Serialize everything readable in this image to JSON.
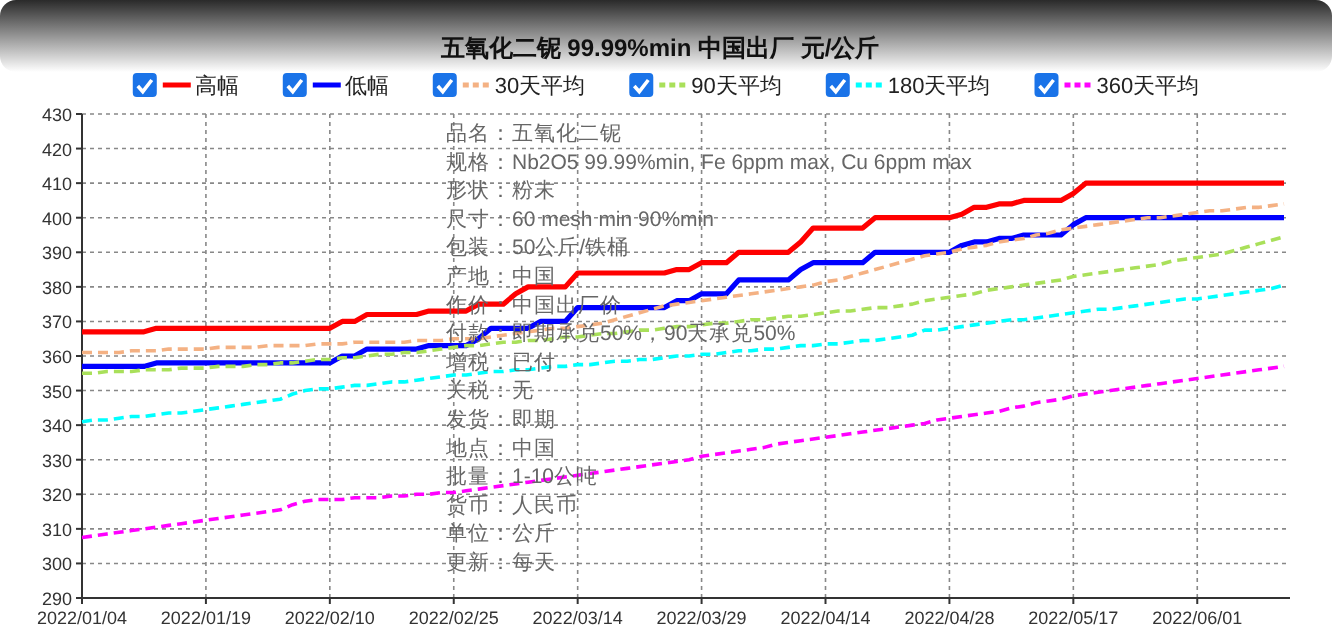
{
  "chart_data": {
    "type": "line",
    "title": "五氧化二铌 99.99%min 中国出厂 元/公斤",
    "categories": [
      "2022/01/04",
      null,
      null,
      null,
      null,
      null,
      null,
      null,
      null,
      null,
      "2022/01/19",
      null,
      null,
      null,
      null,
      null,
      null,
      null,
      null,
      null,
      "2022/02/10",
      null,
      null,
      null,
      null,
      null,
      null,
      null,
      null,
      null,
      "2022/02/25",
      null,
      null,
      null,
      null,
      null,
      null,
      null,
      null,
      null,
      "2022/03/14",
      null,
      null,
      null,
      null,
      null,
      null,
      null,
      null,
      null,
      "2022/03/29",
      null,
      null,
      null,
      null,
      null,
      null,
      null,
      null,
      null,
      "2022/04/14",
      null,
      null,
      null,
      null,
      null,
      null,
      null,
      null,
      null,
      "2022/04/28",
      null,
      null,
      null,
      null,
      null,
      null,
      null,
      null,
      null,
      "2022/05/17",
      null,
      null,
      null,
      null,
      null,
      null,
      null,
      null,
      null,
      "2022/06/01",
      null,
      null,
      null,
      null,
      null,
      null,
      null
    ],
    "series": [
      {
        "name": "高幅",
        "color": "#ff0000",
        "line_style": "solid",
        "values": [
          367,
          367,
          367,
          367,
          367,
          367,
          368,
          368,
          368,
          368,
          368,
          368,
          368,
          368,
          368,
          368,
          368,
          368,
          368,
          368,
          368,
          370,
          370,
          372,
          372,
          372,
          372,
          372,
          373,
          373,
          373,
          373,
          375,
          375,
          375,
          378,
          380,
          380,
          380,
          380,
          384,
          384,
          384,
          384,
          384,
          384,
          384,
          384,
          385,
          385,
          387,
          387,
          387,
          390,
          390,
          390,
          390,
          390,
          393,
          397,
          397,
          397,
          397,
          397,
          400,
          400,
          400,
          400,
          400,
          400,
          400,
          401,
          403,
          403,
          404,
          404,
          405,
          405,
          405,
          405,
          407,
          410,
          410,
          410,
          410,
          410,
          410,
          410,
          410,
          410,
          410,
          410,
          410,
          410,
          410,
          410,
          410,
          410
        ]
      },
      {
        "name": "低幅",
        "color": "#0000ff",
        "line_style": "solid",
        "values": [
          357,
          357,
          357,
          357,
          357,
          357,
          358,
          358,
          358,
          358,
          358,
          358,
          358,
          358,
          358,
          358,
          358,
          358,
          358,
          358,
          358,
          360,
          360,
          362,
          362,
          362,
          362,
          362,
          363,
          363,
          363,
          363,
          365,
          368,
          368,
          368,
          368,
          370,
          370,
          370,
          374,
          374,
          374,
          374,
          374,
          374,
          374,
          374,
          376,
          376,
          378,
          378,
          378,
          382,
          382,
          382,
          382,
          382,
          385,
          387,
          387,
          387,
          387,
          387,
          390,
          390,
          390,
          390,
          390,
          390,
          390,
          392,
          393,
          393,
          394,
          394,
          395,
          395,
          395,
          395,
          398,
          400,
          400,
          400,
          400,
          400,
          400,
          400,
          400,
          400,
          400,
          400,
          400,
          400,
          400,
          400,
          400,
          400
        ]
      },
      {
        "name": "30天平均",
        "color": "#f4b183",
        "line_style": "dashed",
        "values": [
          361,
          361,
          361,
          361,
          361.5,
          361.5,
          361.5,
          362,
          362,
          362,
          362,
          362.5,
          362.5,
          362.5,
          362.5,
          363,
          363,
          363,
          363,
          363.5,
          363.5,
          363.5,
          364,
          364,
          364,
          364,
          364,
          364.5,
          364.5,
          364.5,
          365,
          365,
          365,
          365.5,
          366,
          366.5,
          367,
          367.5,
          368,
          368,
          368.5,
          369,
          369.5,
          370.5,
          371.5,
          372.5,
          373.5,
          374.5,
          375,
          375.5,
          376,
          376.5,
          377,
          377.5,
          378,
          378.5,
          379,
          379.5,
          380,
          380.5,
          381.5,
          382,
          383,
          384,
          385,
          386,
          387,
          388,
          389,
          389.5,
          390,
          391,
          391.5,
          392,
          393,
          393.5,
          394,
          395,
          395.5,
          396.5,
          397,
          397.5,
          398,
          398.5,
          399,
          399.5,
          400,
          400,
          400.5,
          401,
          401.5,
          402,
          402,
          402.5,
          403,
          403,
          403.5,
          404
        ]
      },
      {
        "name": "90天平均",
        "color": "#a9e05a",
        "line_style": "dashed",
        "values": [
          355,
          355,
          355.5,
          355.5,
          355.5,
          356,
          356,
          356,
          356.5,
          356.5,
          356.5,
          357,
          357,
          357,
          357.5,
          357.5,
          358,
          358,
          358.5,
          359,
          359,
          359.5,
          359.5,
          360,
          360.5,
          360.5,
          361,
          361,
          361.5,
          362,
          362.5,
          363,
          363,
          363.5,
          364,
          364,
          364.5,
          364.5,
          365,
          365.5,
          365.5,
          366,
          366.5,
          366.5,
          367,
          367.5,
          367.5,
          368,
          368.5,
          368.5,
          369,
          369.5,
          369.5,
          370,
          370.5,
          370.5,
          371,
          371.5,
          371.5,
          372,
          372.5,
          373,
          373,
          373.5,
          374,
          374,
          374.5,
          375,
          376,
          376.5,
          377,
          377.5,
          378,
          379,
          379.5,
          380,
          380.5,
          381,
          381.5,
          382,
          383,
          383.5,
          384,
          384.5,
          385,
          385.5,
          386,
          386.5,
          387.5,
          388,
          388.5,
          389,
          389.5,
          390.5,
          391.5,
          392.5,
          393.5,
          394.5
        ]
      },
      {
        "name": "180天平均",
        "color": "#00ffff",
        "line_style": "dashed",
        "values": [
          341,
          341.5,
          341.5,
          342,
          342.5,
          342.5,
          343,
          343.5,
          343.5,
          344,
          344.5,
          345,
          345.5,
          346,
          346.5,
          347,
          347.5,
          349,
          350,
          350.5,
          350.5,
          351,
          351.5,
          351.5,
          352,
          352.5,
          352.5,
          353,
          353.5,
          354,
          354.5,
          354.5,
          355,
          355.5,
          355.5,
          356,
          356,
          356.5,
          357,
          357,
          357.5,
          357.5,
          358,
          358.5,
          358.5,
          359,
          359,
          359.5,
          360,
          360,
          360.5,
          360.5,
          361,
          361.5,
          361.5,
          362,
          362,
          362.5,
          363,
          363,
          363.5,
          363.5,
          364,
          364.5,
          364.5,
          365,
          365.5,
          366,
          367.5,
          367.5,
          368,
          368.5,
          369,
          369.5,
          370,
          370.5,
          370.5,
          371,
          371.5,
          372,
          372.5,
          373,
          373.5,
          373.5,
          374,
          374.5,
          375,
          375.5,
          376,
          376.5,
          376.5,
          377,
          377.5,
          378,
          378.5,
          379,
          379.5,
          380.5
        ]
      },
      {
        "name": "360天平均",
        "color": "#ff00ff",
        "line_style": "dashed",
        "values": [
          307.5,
          308,
          308.5,
          309,
          309.5,
          310,
          310.5,
          311,
          311.5,
          312,
          312.5,
          313,
          313.5,
          314,
          314.5,
          315,
          315.5,
          317,
          318,
          318.5,
          318.5,
          318.5,
          319,
          319,
          319,
          319.5,
          319.5,
          320,
          320,
          320.5,
          320.5,
          321,
          321.5,
          322,
          322.5,
          323,
          323.5,
          324,
          324.5,
          325,
          325.5,
          326,
          326.5,
          327,
          327.5,
          328,
          328.5,
          329,
          329.5,
          330,
          331,
          331.5,
          332,
          332.5,
          333,
          333.5,
          334.5,
          335,
          335.5,
          336,
          336.5,
          337,
          337.5,
          338,
          338.5,
          339,
          339.5,
          340,
          340.5,
          341.5,
          342,
          342.5,
          343,
          343.5,
          344,
          345,
          345.5,
          346.5,
          347,
          347.5,
          348.5,
          349,
          349.5,
          350,
          350.5,
          351,
          351.5,
          352,
          352.5,
          353,
          353.5,
          354,
          354.5,
          355,
          355.5,
          356,
          356.5,
          357
        ]
      }
    ],
    "ylim": [
      290,
      430
    ],
    "yticks": [
      290,
      300,
      310,
      320,
      330,
      340,
      350,
      360,
      370,
      380,
      390,
      400,
      410,
      420,
      430
    ],
    "grid": true,
    "legend": "top",
    "annotations": [
      "品名：五氧化二铌",
      "规格：Nb2O5 99.99%min, Fe 6ppm max, Cu 6ppm max",
      "形状：粉末",
      "尺寸：60 mesh min 90%min",
      "包装：50公斤/铁桶",
      "产地：中国",
      "作价：中国出厂价",
      "付款：即期承兑50%，90天承兑50%",
      "增税：已付",
      "关税：无",
      "发货：即期",
      "地点：中国",
      "批量：1-10公吨",
      "货币：人民币",
      "单位：公斤",
      "更新：每天"
    ]
  }
}
